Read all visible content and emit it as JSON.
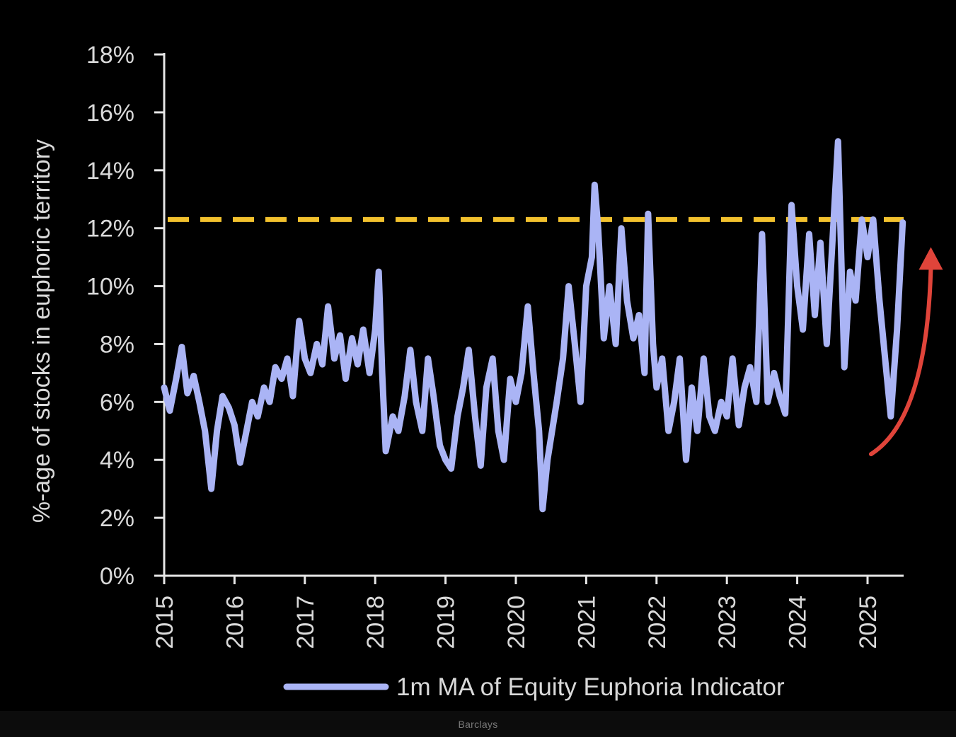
{
  "chart_data": {
    "type": "line",
    "title": "",
    "ylabel": "%-age of stocks in euphoric territory",
    "xlabel": "",
    "ylim": [
      0,
      18
    ],
    "xlim": [
      2015,
      2025.5
    ],
    "y_ticks": [
      "0%",
      "2%",
      "4%",
      "6%",
      "8%",
      "10%",
      "12%",
      "14%",
      "16%",
      "18%"
    ],
    "x_ticks": [
      "2015",
      "2016",
      "2017",
      "2018",
      "2019",
      "2020",
      "2021",
      "2022",
      "2023",
      "2024",
      "2025"
    ],
    "grid": false,
    "legend_position": "bottom",
    "threshold": {
      "value": 12.3,
      "color": "#f2c12e",
      "style": "dashed"
    },
    "annotation": {
      "type": "curved-arrow",
      "direction": "up",
      "color": "#e0443a",
      "from": {
        "x": 2025.05,
        "y": 4.2
      },
      "to": {
        "x": 2025.9,
        "y": 11.3
      }
    },
    "series": [
      {
        "name": "1m MA of Equity Euphoria Indicator",
        "color": "#aab4f5",
        "points": [
          [
            2015.0,
            6.5
          ],
          [
            2015.08,
            5.7
          ],
          [
            2015.17,
            6.8
          ],
          [
            2015.25,
            7.9
          ],
          [
            2015.33,
            6.3
          ],
          [
            2015.42,
            6.9
          ],
          [
            2015.5,
            6.0
          ],
          [
            2015.58,
            5.0
          ],
          [
            2015.67,
            3.0
          ],
          [
            2015.75,
            5.0
          ],
          [
            2015.83,
            6.2
          ],
          [
            2015.92,
            5.8
          ],
          [
            2016.0,
            5.2
          ],
          [
            2016.08,
            3.9
          ],
          [
            2016.17,
            5.0
          ],
          [
            2016.25,
            6.0
          ],
          [
            2016.33,
            5.5
          ],
          [
            2016.42,
            6.5
          ],
          [
            2016.5,
            6.0
          ],
          [
            2016.58,
            7.2
          ],
          [
            2016.67,
            6.8
          ],
          [
            2016.75,
            7.5
          ],
          [
            2016.83,
            6.2
          ],
          [
            2016.92,
            8.8
          ],
          [
            2017.0,
            7.5
          ],
          [
            2017.08,
            7.0
          ],
          [
            2017.17,
            8.0
          ],
          [
            2017.25,
            7.3
          ],
          [
            2017.33,
            9.3
          ],
          [
            2017.42,
            7.5
          ],
          [
            2017.5,
            8.3
          ],
          [
            2017.58,
            6.8
          ],
          [
            2017.67,
            8.2
          ],
          [
            2017.75,
            7.3
          ],
          [
            2017.83,
            8.5
          ],
          [
            2017.92,
            7.0
          ],
          [
            2018.0,
            8.5
          ],
          [
            2018.05,
            10.5
          ],
          [
            2018.1,
            7.0
          ],
          [
            2018.15,
            4.3
          ],
          [
            2018.25,
            5.5
          ],
          [
            2018.33,
            5.0
          ],
          [
            2018.42,
            6.2
          ],
          [
            2018.5,
            7.8
          ],
          [
            2018.58,
            6.0
          ],
          [
            2018.67,
            5.0
          ],
          [
            2018.75,
            7.5
          ],
          [
            2018.83,
            6.2
          ],
          [
            2018.92,
            4.5
          ],
          [
            2019.0,
            4.0
          ],
          [
            2019.08,
            3.7
          ],
          [
            2019.17,
            5.5
          ],
          [
            2019.25,
            6.5
          ],
          [
            2019.33,
            7.8
          ],
          [
            2019.42,
            5.5
          ],
          [
            2019.5,
            3.8
          ],
          [
            2019.58,
            6.5
          ],
          [
            2019.67,
            7.5
          ],
          [
            2019.75,
            5.0
          ],
          [
            2019.83,
            4.0
          ],
          [
            2019.92,
            6.8
          ],
          [
            2020.0,
            6.0
          ],
          [
            2020.08,
            7.0
          ],
          [
            2020.17,
            9.3
          ],
          [
            2020.25,
            7.0
          ],
          [
            2020.33,
            5.0
          ],
          [
            2020.38,
            2.3
          ],
          [
            2020.45,
            4.0
          ],
          [
            2020.58,
            6.0
          ],
          [
            2020.67,
            7.5
          ],
          [
            2020.75,
            10.0
          ],
          [
            2020.83,
            8.2
          ],
          [
            2020.92,
            6.0
          ],
          [
            2021.0,
            10.0
          ],
          [
            2021.08,
            11.0
          ],
          [
            2021.12,
            13.5
          ],
          [
            2021.17,
            12.0
          ],
          [
            2021.25,
            8.2
          ],
          [
            2021.33,
            10.0
          ],
          [
            2021.42,
            8.0
          ],
          [
            2021.5,
            12.0
          ],
          [
            2021.58,
            9.5
          ],
          [
            2021.67,
            8.2
          ],
          [
            2021.75,
            9.0
          ],
          [
            2021.83,
            7.0
          ],
          [
            2021.88,
            12.5
          ],
          [
            2021.95,
            8.0
          ],
          [
            2022.0,
            6.5
          ],
          [
            2022.08,
            7.5
          ],
          [
            2022.17,
            5.0
          ],
          [
            2022.25,
            6.0
          ],
          [
            2022.33,
            7.5
          ],
          [
            2022.42,
            4.0
          ],
          [
            2022.5,
            6.5
          ],
          [
            2022.58,
            5.0
          ],
          [
            2022.67,
            7.5
          ],
          [
            2022.75,
            5.5
          ],
          [
            2022.83,
            5.0
          ],
          [
            2022.92,
            6.0
          ],
          [
            2023.0,
            5.5
          ],
          [
            2023.08,
            7.5
          ],
          [
            2023.17,
            5.2
          ],
          [
            2023.25,
            6.5
          ],
          [
            2023.33,
            7.2
          ],
          [
            2023.42,
            6.0
          ],
          [
            2023.5,
            11.8
          ],
          [
            2023.58,
            6.0
          ],
          [
            2023.67,
            7.0
          ],
          [
            2023.75,
            6.2
          ],
          [
            2023.83,
            5.6
          ],
          [
            2023.92,
            12.8
          ],
          [
            2024.0,
            10.0
          ],
          [
            2024.08,
            8.5
          ],
          [
            2024.17,
            11.8
          ],
          [
            2024.25,
            9.0
          ],
          [
            2024.33,
            11.5
          ],
          [
            2024.42,
            8.0
          ],
          [
            2024.5,
            11.5
          ],
          [
            2024.58,
            15.0
          ],
          [
            2024.67,
            7.2
          ],
          [
            2024.75,
            10.5
          ],
          [
            2024.83,
            9.5
          ],
          [
            2024.92,
            12.3
          ],
          [
            2025.0,
            11.0
          ],
          [
            2025.08,
            12.3
          ],
          [
            2025.17,
            9.5
          ],
          [
            2025.25,
            7.5
          ],
          [
            2025.33,
            5.5
          ],
          [
            2025.42,
            8.5
          ],
          [
            2025.5,
            12.2
          ]
        ]
      }
    ]
  },
  "footer": {
    "source": "Barclays"
  }
}
